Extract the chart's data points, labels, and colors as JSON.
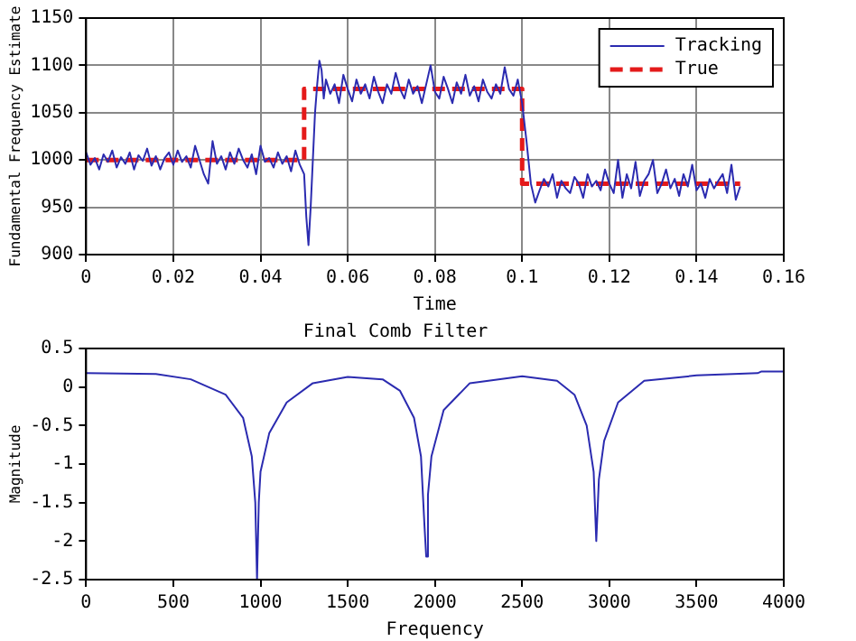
{
  "chart_data": [
    {
      "type": "line",
      "xlabel": "Time",
      "ylabel": "Fundamental Frequency Estimate",
      "xlim": [
        0,
        0.16
      ],
      "xticks": [
        0,
        0.02,
        0.04,
        0.06,
        0.08,
        0.1,
        0.12,
        0.14,
        0.16
      ],
      "ylim": [
        900,
        1150
      ],
      "yticks": [
        900,
        950,
        1000,
        1050,
        1100,
        1150
      ],
      "grid": true,
      "legend": "top right",
      "series": [
        {
          "name": "Tracking",
          "color": "#2b2bb0",
          "line_style": "solid",
          "x": [
            0,
            0.001,
            0.002,
            0.003,
            0.004,
            0.005,
            0.006,
            0.007,
            0.008,
            0.009,
            0.01,
            0.011,
            0.012,
            0.013,
            0.014,
            0.015,
            0.016,
            0.017,
            0.018,
            0.019,
            0.02,
            0.021,
            0.022,
            0.023,
            0.024,
            0.025,
            0.026,
            0.027,
            0.028,
            0.029,
            0.03,
            0.031,
            0.032,
            0.033,
            0.034,
            0.035,
            0.036,
            0.037,
            0.038,
            0.039,
            0.04,
            0.041,
            0.042,
            0.043,
            0.044,
            0.045,
            0.046,
            0.047,
            0.048,
            0.049,
            0.05,
            0.0505,
            0.051,
            0.0515,
            0.052,
            0.0525,
            0.053,
            0.0535,
            0.054,
            0.0545,
            0.055,
            0.056,
            0.057,
            0.058,
            0.059,
            0.06,
            0.061,
            0.062,
            0.063,
            0.064,
            0.065,
            0.066,
            0.067,
            0.068,
            0.069,
            0.07,
            0.071,
            0.072,
            0.073,
            0.074,
            0.075,
            0.076,
            0.077,
            0.078,
            0.079,
            0.08,
            0.081,
            0.082,
            0.083,
            0.084,
            0.085,
            0.086,
            0.087,
            0.088,
            0.089,
            0.09,
            0.091,
            0.092,
            0.093,
            0.094,
            0.095,
            0.096,
            0.097,
            0.098,
            0.099,
            0.1,
            0.101,
            0.102,
            0.103,
            0.104,
            0.105,
            0.106,
            0.107,
            0.108,
            0.109,
            0.11,
            0.111,
            0.112,
            0.113,
            0.114,
            0.115,
            0.116,
            0.117,
            0.118,
            0.119,
            0.12,
            0.121,
            0.122,
            0.123,
            0.124,
            0.125,
            0.126,
            0.127,
            0.128,
            0.129,
            0.13,
            0.131,
            0.132,
            0.133,
            0.134,
            0.135,
            0.136,
            0.137,
            0.138,
            0.139,
            0.14,
            0.141,
            0.142,
            0.143,
            0.144,
            0.145,
            0.146,
            0.147,
            0.148,
            0.149,
            0.15
          ],
          "values": [
            1008,
            995,
            1002,
            990,
            1006,
            998,
            1010,
            992,
            1003,
            996,
            1008,
            990,
            1005,
            999,
            1012,
            994,
            1004,
            990,
            1002,
            1008,
            995,
            1010,
            998,
            1004,
            992,
            1015,
            1000,
            985,
            975,
            1020,
            996,
            1004,
            990,
            1008,
            996,
            1012,
            1000,
            992,
            1006,
            985,
            1015,
            998,
            1002,
            992,
            1008,
            996,
            1004,
            988,
            1010,
            995,
            985,
            940,
            910,
            950,
            1000,
            1050,
            1080,
            1105,
            1095,
            1065,
            1085,
            1070,
            1080,
            1060,
            1090,
            1075,
            1062,
            1085,
            1070,
            1080,
            1065,
            1088,
            1072,
            1060,
            1080,
            1070,
            1092,
            1075,
            1065,
            1085,
            1070,
            1078,
            1060,
            1080,
            1100,
            1072,
            1065,
            1088,
            1075,
            1060,
            1082,
            1070,
            1090,
            1068,
            1078,
            1062,
            1085,
            1072,
            1065,
            1080,
            1070,
            1098,
            1075,
            1068,
            1085,
            1060,
            1020,
            975,
            955,
            968,
            980,
            972,
            985,
            960,
            978,
            970,
            965,
            982,
            975,
            960,
            985,
            972,
            978,
            968,
            990,
            975,
            965,
            1000,
            960,
            985,
            970,
            998,
            962,
            978,
            985,
            1000,
            965,
            975,
            990,
            970,
            980,
            962,
            985,
            972,
            995,
            968,
            975,
            960,
            980,
            970,
            978,
            985,
            965,
            995,
            958,
            972
          ]
        },
        {
          "name": "True",
          "color": "#e41a1a",
          "line_style": "dashed",
          "x": [
            0,
            0.05,
            0.05,
            0.1,
            0.1,
            0.15
          ],
          "values": [
            1000,
            1000,
            1075,
            1075,
            975,
            975
          ]
        }
      ]
    },
    {
      "type": "line",
      "title": "Final Comb Filter",
      "xlabel": "Frequency",
      "ylabel": "Magnitude",
      "xlim": [
        0,
        4000
      ],
      "xticks": [
        0,
        500,
        1000,
        1500,
        2000,
        2500,
        3000,
        3500,
        4000
      ],
      "ylim": [
        -2.5,
        0.5
      ],
      "yticks": [
        -2.5,
        -2,
        -1.5,
        -1,
        -0.5,
        0,
        0.5
      ],
      "grid": false,
      "legend": false,
      "series": [
        {
          "color": "#2b2bb0",
          "line_style": "solid",
          "x": [
            0,
            400,
            600,
            800,
            900,
            950,
            970,
            980,
            990,
            1000,
            1050,
            1150,
            1300,
            1500,
            1700,
            1800,
            1880,
            1920,
            1940,
            1950,
            1960,
            1980,
            2050,
            2200,
            2500,
            2700,
            2800,
            2870,
            2910,
            2925,
            2940,
            2970,
            3050,
            3200,
            3500,
            3850,
            3870,
            4000
          ],
          "values": [
            0.18,
            0.17,
            0.1,
            -0.1,
            -0.4,
            -0.9,
            -1.5,
            -2.5,
            -1.5,
            -1.1,
            -0.6,
            -0.2,
            0.05,
            0.13,
            0.1,
            -0.05,
            -0.4,
            -0.9,
            -1.8,
            -2.2,
            -1.4,
            -0.9,
            -0.3,
            0.05,
            0.14,
            0.08,
            -0.1,
            -0.5,
            -1.1,
            -2,
            -1.2,
            -0.7,
            -0.2,
            0.08,
            0.15,
            0.18,
            0.2,
            0.2
          ]
        }
      ]
    }
  ]
}
